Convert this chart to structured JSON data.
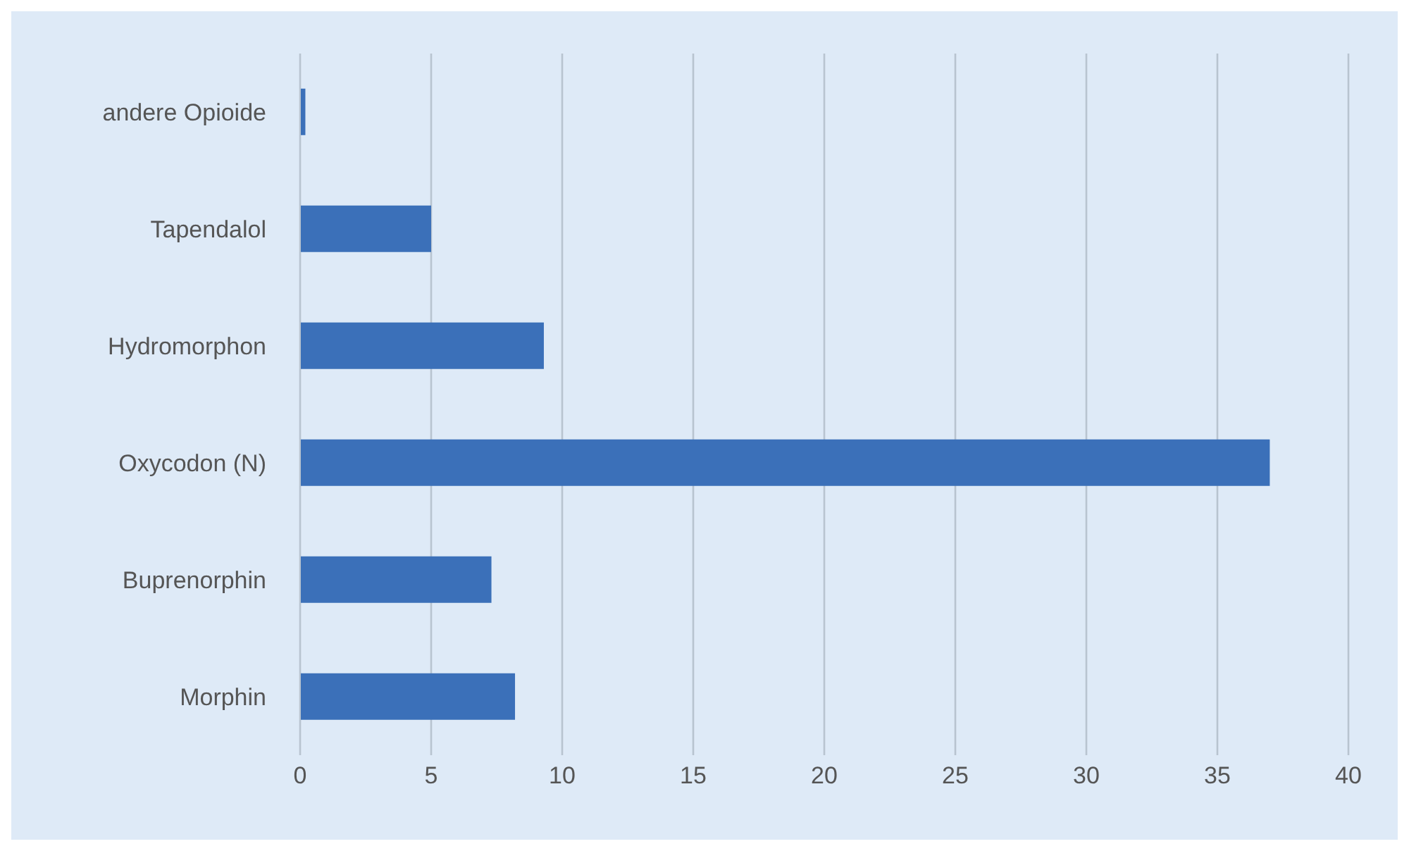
{
  "chart_data": {
    "type": "bar",
    "orientation": "horizontal",
    "categories": [
      "andere Opioide",
      "Tapendalol",
      "Hydromorphon",
      "Oxycodon (N)",
      "Buprenorphin",
      "Morphin"
    ],
    "values": [
      0.2,
      5.0,
      9.3,
      37.0,
      7.3,
      8.2
    ],
    "color": "#3b70b9",
    "xlim": [
      0,
      40
    ],
    "xticks": [
      0,
      5,
      10,
      15,
      20,
      25,
      30,
      35,
      40
    ],
    "grid": "x"
  }
}
